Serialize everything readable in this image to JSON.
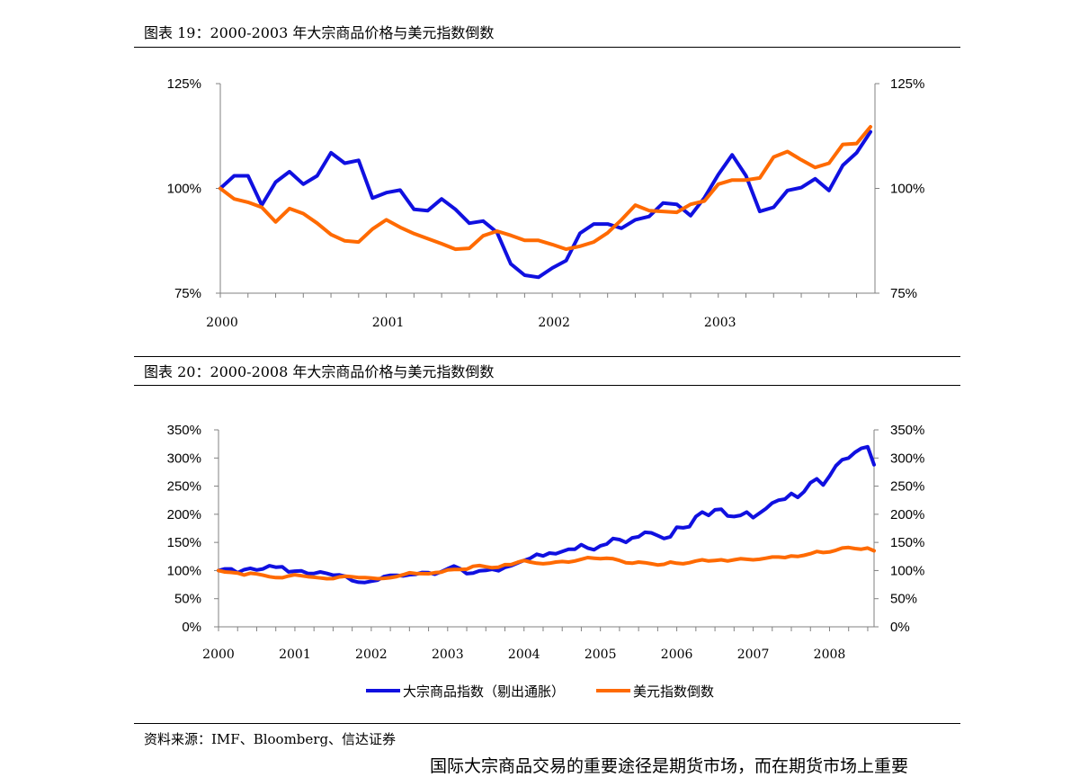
{
  "figure19": {
    "caption": "图表 19：2000-2003 年大宗商品价格与美元指数倒数"
  },
  "figure20": {
    "caption": "图表 20：2000-2008 年大宗商品价格与美元指数倒数"
  },
  "source": "资料来源：IMF、Bloomberg、信达证券",
  "bottom_text": "国际大宗商品交易的重要途径是期货市场，而在期货市场上重要",
  "colors": {
    "commodity": "#1010e0",
    "dollar": "#ff6a00"
  },
  "chart_data": [
    {
      "type": "line",
      "title": "",
      "x_start": 2000.0,
      "x_end": 2003.917,
      "x_tick_labels": [
        "2000",
        "2001",
        "2002",
        "2003"
      ],
      "x_tick_values": [
        2000,
        2001,
        2002,
        2003
      ],
      "ylim": [
        0.75,
        1.25
      ],
      "y_tick_labels": [
        "125%",
        "100%",
        "75%"
      ],
      "y_tick_values": [
        1.25,
        1.0,
        0.75
      ],
      "legend": "none",
      "series": [
        {
          "color_key": "commodity",
          "values": [
            1.0,
            1.03,
            1.03,
            0.96,
            1.015,
            1.04,
            1.01,
            1.03,
            1.085,
            1.06,
            1.067,
            0.977,
            0.99,
            0.996,
            0.95,
            0.947,
            0.975,
            0.95,
            0.917,
            0.922,
            0.895,
            0.82,
            0.793,
            0.788,
            0.81,
            0.828,
            0.893,
            0.915,
            0.915,
            0.905,
            0.925,
            0.933,
            0.965,
            0.962,
            0.935,
            0.978,
            1.033,
            1.08,
            1.03,
            0.945,
            0.955,
            0.995,
            1.002,
            1.023,
            0.995,
            1.055,
            1.085,
            1.135
          ]
        },
        {
          "color_key": "dollar",
          "values": [
            1.0,
            0.975,
            0.967,
            0.955,
            0.92,
            0.952,
            0.94,
            0.917,
            0.89,
            0.875,
            0.872,
            0.903,
            0.925,
            0.907,
            0.892,
            0.88,
            0.868,
            0.855,
            0.857,
            0.887,
            0.898,
            0.888,
            0.876,
            0.876,
            0.866,
            0.855,
            0.862,
            0.872,
            0.894,
            0.925,
            0.96,
            0.947,
            0.945,
            0.943,
            0.962,
            0.97,
            1.01,
            1.02,
            1.02,
            1.025,
            1.075,
            1.088,
            1.068,
            1.05,
            1.06,
            1.105,
            1.107,
            1.147
          ]
        }
      ]
    },
    {
      "type": "line",
      "title": "",
      "x_start": 2000.0,
      "x_end": 2008.583,
      "x_tick_labels": [
        "2000",
        "2001",
        "2002",
        "2003",
        "2004",
        "2005",
        "2006",
        "2007",
        "2008"
      ],
      "x_tick_values": [
        2000,
        2001,
        2002,
        2003,
        2004,
        2005,
        2006,
        2007,
        2008
      ],
      "ylim": [
        0,
        3.5
      ],
      "y_tick_labels": [
        "350%",
        "300%",
        "250%",
        "200%",
        "150%",
        "100%",
        "50%",
        "0%"
      ],
      "y_tick_values": [
        3.5,
        3.0,
        2.5,
        2.0,
        1.5,
        1.0,
        0.5,
        0.0
      ],
      "legend": "bottom-center",
      "series": [
        {
          "name": "大宗商品指数（剔出通胀）",
          "color_key": "commodity",
          "values": [
            1.0,
            1.03,
            1.03,
            0.96,
            1.015,
            1.04,
            1.01,
            1.03,
            1.085,
            1.06,
            1.067,
            0.977,
            0.99,
            0.996,
            0.95,
            0.947,
            0.975,
            0.95,
            0.917,
            0.922,
            0.895,
            0.82,
            0.793,
            0.788,
            0.81,
            0.828,
            0.893,
            0.915,
            0.915,
            0.905,
            0.925,
            0.933,
            0.965,
            0.962,
            0.935,
            0.978,
            1.033,
            1.08,
            1.03,
            0.945,
            0.955,
            0.995,
            1.002,
            1.023,
            0.995,
            1.055,
            1.085,
            1.135,
            1.18,
            1.22,
            1.29,
            1.26,
            1.31,
            1.3,
            1.34,
            1.38,
            1.38,
            1.46,
            1.4,
            1.37,
            1.44,
            1.47,
            1.57,
            1.55,
            1.5,
            1.58,
            1.6,
            1.68,
            1.67,
            1.62,
            1.57,
            1.6,
            1.77,
            1.76,
            1.78,
            1.96,
            2.04,
            1.98,
            2.08,
            2.09,
            1.97,
            1.96,
            1.98,
            2.04,
            1.94,
            2.02,
            2.1,
            2.2,
            2.25,
            2.27,
            2.37,
            2.3,
            2.4,
            2.56,
            2.63,
            2.52,
            2.68,
            2.86,
            2.97,
            3.0,
            3.1,
            3.17,
            3.2,
            2.88
          ]
        },
        {
          "name": "美元指数倒数",
          "color_key": "dollar",
          "values": [
            1.0,
            0.975,
            0.967,
            0.955,
            0.92,
            0.952,
            0.94,
            0.917,
            0.89,
            0.875,
            0.872,
            0.903,
            0.925,
            0.907,
            0.892,
            0.88,
            0.868,
            0.855,
            0.857,
            0.887,
            0.898,
            0.888,
            0.876,
            0.876,
            0.866,
            0.855,
            0.862,
            0.872,
            0.894,
            0.925,
            0.96,
            0.947,
            0.945,
            0.943,
            0.962,
            0.97,
            1.01,
            1.02,
            1.02,
            1.025,
            1.075,
            1.088,
            1.068,
            1.05,
            1.06,
            1.105,
            1.107,
            1.147,
            1.18,
            1.15,
            1.13,
            1.12,
            1.13,
            1.15,
            1.16,
            1.15,
            1.17,
            1.2,
            1.23,
            1.22,
            1.21,
            1.22,
            1.21,
            1.18,
            1.14,
            1.13,
            1.15,
            1.14,
            1.12,
            1.1,
            1.11,
            1.15,
            1.13,
            1.12,
            1.14,
            1.17,
            1.19,
            1.17,
            1.18,
            1.19,
            1.17,
            1.19,
            1.21,
            1.2,
            1.19,
            1.2,
            1.22,
            1.24,
            1.24,
            1.23,
            1.26,
            1.25,
            1.27,
            1.3,
            1.34,
            1.32,
            1.33,
            1.36,
            1.4,
            1.41,
            1.39,
            1.38,
            1.4,
            1.35
          ]
        }
      ]
    }
  ]
}
